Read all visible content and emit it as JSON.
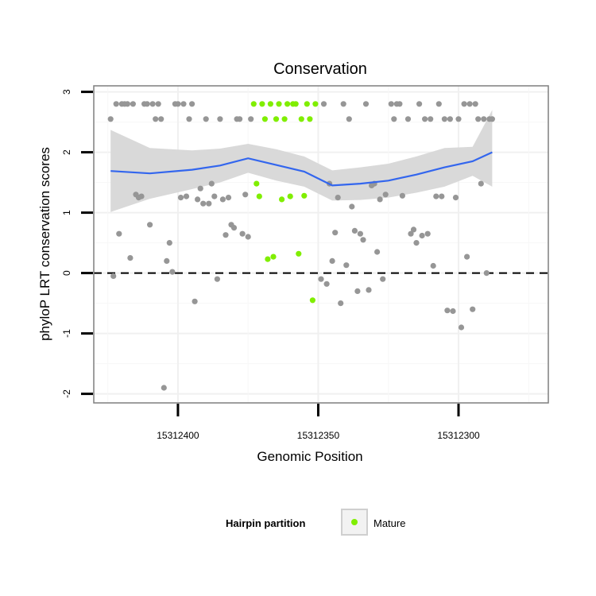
{
  "chart_data": {
    "type": "scatter",
    "title": "Conservation",
    "xlabel": "Genomic Position",
    "ylabel": "phyloP LRT conservation scores",
    "x_reversed": true,
    "xlim": [
      15312430,
      15312268
    ],
    "ylim": [
      -2.15,
      3.1
    ],
    "x_ticks": [
      15312400,
      15312350,
      15312300
    ],
    "x_tick_labels": [
      "15312400",
      "15312350",
      "15312300"
    ],
    "y_ticks": [
      -2,
      -1,
      0,
      1,
      2,
      3
    ],
    "y_tick_labels": [
      "-2",
      "-1",
      "0",
      "1",
      "2",
      "3"
    ],
    "reference_line": {
      "y": 0,
      "style": "dashed"
    },
    "legend": {
      "title": "Hairpin partition",
      "entries": [
        {
          "label": "Mature",
          "color": "#80ee00"
        }
      ]
    },
    "colors": {
      "other": "#969696",
      "mature": "#80ee00",
      "smooth": "#3366ee",
      "ribbon": "#d9d9d9"
    },
    "series": [
      {
        "name": "Other",
        "color": "#969696",
        "points": [
          [
            15312424,
            2.55
          ],
          [
            15312423,
            -0.05
          ],
          [
            15312422,
            2.8
          ],
          [
            15312421,
            0.65
          ],
          [
            15312420,
            2.8
          ],
          [
            15312419,
            2.8
          ],
          [
            15312418,
            2.8
          ],
          [
            15312417,
            0.25
          ],
          [
            15312416,
            2.8
          ],
          [
            15312415,
            1.3
          ],
          [
            15312414,
            1.25
          ],
          [
            15312413,
            1.27
          ],
          [
            15312412,
            2.8
          ],
          [
            15312411,
            2.8
          ],
          [
            15312410,
            0.8
          ],
          [
            15312409,
            2.8
          ],
          [
            15312408,
            2.55
          ],
          [
            15312407,
            2.8
          ],
          [
            15312406,
            2.55
          ],
          [
            15312405,
            -1.9
          ],
          [
            15312404,
            0.2
          ],
          [
            15312403,
            0.5
          ],
          [
            15312402,
            0.02
          ],
          [
            15312401,
            2.8
          ],
          [
            15312400,
            2.8
          ],
          [
            15312399,
            1.25
          ],
          [
            15312398,
            2.8
          ],
          [
            15312397,
            1.27
          ],
          [
            15312396,
            2.55
          ],
          [
            15312395,
            2.8
          ],
          [
            15312394,
            -0.47
          ],
          [
            15312393,
            1.22
          ],
          [
            15312392,
            1.4
          ],
          [
            15312391,
            1.15
          ],
          [
            15312390,
            2.55
          ],
          [
            15312389,
            1.15
          ],
          [
            15312388,
            1.48
          ],
          [
            15312387,
            1.27
          ],
          [
            15312386,
            -0.1
          ],
          [
            15312385,
            2.55
          ],
          [
            15312384,
            1.22
          ],
          [
            15312383,
            0.63
          ],
          [
            15312382,
            1.25
          ],
          [
            15312381,
            0.8
          ],
          [
            15312380,
            0.75
          ],
          [
            15312379,
            2.55
          ],
          [
            15312378,
            2.55
          ],
          [
            15312377,
            0.65
          ],
          [
            15312376,
            1.3
          ],
          [
            15312375,
            0.6
          ],
          [
            15312374,
            2.55
          ],
          [
            15312349,
            -0.1
          ],
          [
            15312348,
            2.8
          ],
          [
            15312347,
            -0.18
          ],
          [
            15312346,
            1.48
          ],
          [
            15312345,
            0.2
          ],
          [
            15312344,
            0.67
          ],
          [
            15312343,
            1.25
          ],
          [
            15312342,
            -0.5
          ],
          [
            15312341,
            2.8
          ],
          [
            15312340,
            0.13
          ],
          [
            15312339,
            2.55
          ],
          [
            15312338,
            1.1
          ],
          [
            15312337,
            0.7
          ],
          [
            15312336,
            -0.3
          ],
          [
            15312335,
            0.65
          ],
          [
            15312334,
            0.55
          ],
          [
            15312333,
            2.8
          ],
          [
            15312332,
            -0.28
          ],
          [
            15312331,
            1.45
          ],
          [
            15312330,
            1.48
          ],
          [
            15312329,
            0.35
          ],
          [
            15312328,
            1.22
          ],
          [
            15312327,
            -0.1
          ],
          [
            15312326,
            1.3
          ],
          [
            15312324,
            2.8
          ],
          [
            15312323,
            2.55
          ],
          [
            15312322,
            2.8
          ],
          [
            15312321,
            2.8
          ],
          [
            15312320,
            1.28
          ],
          [
            15312318,
            2.55
          ],
          [
            15312317,
            0.65
          ],
          [
            15312316,
            0.72
          ],
          [
            15312315,
            0.5
          ],
          [
            15312314,
            2.8
          ],
          [
            15312313,
            0.62
          ],
          [
            15312312,
            2.55
          ],
          [
            15312311,
            0.65
          ],
          [
            15312310,
            2.55
          ],
          [
            15312309,
            0.12
          ],
          [
            15312308,
            1.27
          ],
          [
            15312307,
            2.8
          ],
          [
            15312306,
            1.27
          ],
          [
            15312305,
            2.55
          ],
          [
            15312304,
            -0.62
          ],
          [
            15312303,
            2.55
          ],
          [
            15312302,
            -0.63
          ],
          [
            15312301,
            1.25
          ],
          [
            15312300,
            2.55
          ],
          [
            15312299,
            -0.9
          ],
          [
            15312298,
            2.8
          ],
          [
            15312297,
            0.27
          ],
          [
            15312296,
            2.8
          ],
          [
            15312295,
            -0.6
          ],
          [
            15312294,
            2.8
          ],
          [
            15312293,
            2.55
          ],
          [
            15312292,
            1.48
          ],
          [
            15312291,
            2.55
          ],
          [
            15312290,
            0.0
          ],
          [
            15312289,
            2.55
          ],
          [
            15312288,
            2.55
          ]
        ]
      },
      {
        "name": "Mature",
        "color": "#80ee00",
        "points": [
          [
            15312373,
            2.8
          ],
          [
            15312372,
            1.48
          ],
          [
            15312371,
            1.27
          ],
          [
            15312370,
            2.8
          ],
          [
            15312369,
            2.55
          ],
          [
            15312368,
            0.23
          ],
          [
            15312367,
            2.8
          ],
          [
            15312366,
            0.27
          ],
          [
            15312365,
            2.55
          ],
          [
            15312364,
            2.8
          ],
          [
            15312363,
            1.22
          ],
          [
            15312362,
            2.55
          ],
          [
            15312361,
            2.8
          ],
          [
            15312360,
            1.27
          ],
          [
            15312359,
            2.8
          ],
          [
            15312358,
            2.8
          ],
          [
            15312357,
            0.32
          ],
          [
            15312356,
            2.55
          ],
          [
            15312355,
            1.28
          ],
          [
            15312354,
            2.8
          ],
          [
            15312353,
            2.55
          ],
          [
            15312352,
            -0.45
          ],
          [
            15312351,
            2.8
          ]
        ]
      }
    ],
    "smooth": {
      "method": "loess",
      "x": [
        15312424,
        15312410,
        15312395,
        15312385,
        15312375,
        15312365,
        15312355,
        15312345,
        15312335,
        15312325,
        15312315,
        15312305,
        15312295,
        15312288
      ],
      "y": [
        1.69,
        1.65,
        1.71,
        1.78,
        1.9,
        1.79,
        1.68,
        1.45,
        1.48,
        1.53,
        1.63,
        1.75,
        1.85,
        2.0
      ],
      "ymin": [
        1.01,
        1.23,
        1.39,
        1.5,
        1.66,
        1.53,
        1.43,
        1.2,
        1.21,
        1.25,
        1.33,
        1.43,
        1.61,
        1.43
      ],
      "ymax": [
        2.37,
        2.07,
        2.03,
        2.06,
        2.14,
        2.05,
        1.93,
        1.7,
        1.75,
        1.81,
        1.93,
        2.07,
        2.09,
        2.7
      ]
    }
  }
}
